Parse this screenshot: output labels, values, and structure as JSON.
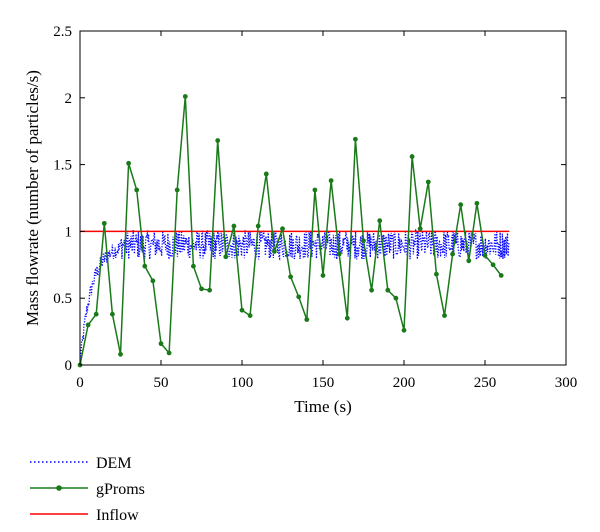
{
  "chart_data": {
    "type": "line",
    "title": "",
    "xlabel": "Time (s)",
    "ylabel": "Mass flowrate (number of particles/s)",
    "xlim": [
      0,
      300
    ],
    "ylim": [
      0,
      2.5
    ],
    "xticks": [
      "0",
      "50",
      "100",
      "150",
      "200",
      "250",
      "300"
    ],
    "yticks": [
      "0",
      "0.5",
      "1",
      "1.5",
      "2",
      "2.5"
    ],
    "grid": false,
    "legend_position": "bottom-left-outside",
    "series": [
      {
        "name": "DEM",
        "color": "#0000ff",
        "style": "dotted",
        "description_of_values": "noisy series rising from 0 to ~0.88 by t=25, then fluctuating 0.78-1.02 until t=265",
        "mean_after_ramp": 0.9,
        "x_range": [
          0,
          265
        ]
      },
      {
        "name": "gProms",
        "color": "#1a7a1a",
        "style": "solid-with-markers",
        "x": [
          0,
          5,
          10,
          15,
          20,
          25,
          30,
          35,
          40,
          45,
          50,
          55,
          60,
          65,
          70,
          75,
          80,
          85,
          90,
          95,
          100,
          105,
          110,
          115,
          120,
          125,
          130,
          135,
          140,
          145,
          150,
          155,
          160,
          165,
          170,
          175,
          180,
          185,
          190,
          195,
          200,
          205,
          210,
          215,
          220,
          225,
          230,
          235,
          240,
          245,
          250,
          255,
          260
        ],
        "y": [
          0,
          0.3,
          0.38,
          1.06,
          0.38,
          0.08,
          1.51,
          1.31,
          0.74,
          0.63,
          0.16,
          0.09,
          1.31,
          2.01,
          0.74,
          0.57,
          0.56,
          1.68,
          0.81,
          1.04,
          0.41,
          0.37,
          1.04,
          1.43,
          0.85,
          1.02,
          0.66,
          0.51,
          0.34,
          1.31,
          0.67,
          1.38,
          0.83,
          0.35,
          1.69,
          0.93,
          0.56,
          1.08,
          0.56,
          0.5,
          0.26,
          1.56,
          1.02,
          1.37,
          0.68,
          0.37,
          0.83,
          1.2,
          0.78,
          1.21,
          0.82,
          0.75,
          0.67
        ]
      },
      {
        "name": "Inflow",
        "color": "#ff0000",
        "style": "solid",
        "x": [
          0,
          265
        ],
        "y": [
          1,
          1
        ]
      }
    ]
  }
}
